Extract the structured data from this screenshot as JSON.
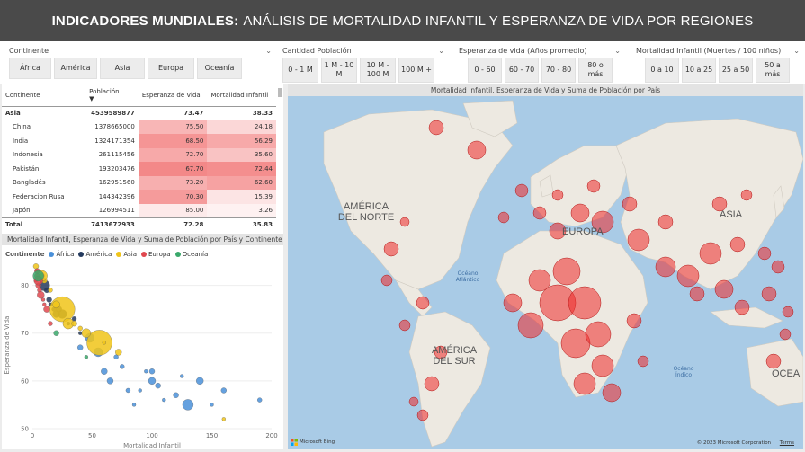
{
  "header": {
    "title_bold": "INDICADORES MUNDIALES:",
    "title_rest": "ANÁLISIS DE MORTALIDAD INFANTIL Y ESPERANZA DE VIDA POR REGIONES"
  },
  "slicers": {
    "continente": {
      "title": "Continente",
      "options": [
        "África",
        "América",
        "Asia",
        "Europa",
        "Oceanía"
      ]
    },
    "poblacion": {
      "title": "Cantidad Población",
      "options": [
        "0 - 1 M",
        "1 M - 10 M",
        "10 M - 100 M",
        "100 M +"
      ]
    },
    "esperanza": {
      "title": "Esperanza de vida (Años promedio)",
      "options": [
        "0 - 60",
        "60 - 70",
        "70 - 80",
        "80 o más"
      ]
    },
    "mortalidad": {
      "title": "Mortalidad Infantil (Muertes / 100 niños)",
      "options": [
        "0 a 10",
        "10 a 25",
        "25 a 50",
        "50 a más"
      ]
    }
  },
  "table": {
    "headers": [
      "Continente",
      "Población",
      "Esperanza de Vida",
      "Mortalidad Infantil"
    ],
    "subtotal": [
      "Asia",
      "4539589877",
      "73.47",
      "38.33"
    ],
    "rows": [
      [
        "China",
        "1378665000",
        "75.50",
        "24.18"
      ],
      [
        "India",
        "1324171354",
        "68.50",
        "56.29"
      ],
      [
        "Indonesia",
        "261115456",
        "72.70",
        "35.60"
      ],
      [
        "Pakistán",
        "193203476",
        "67.70",
        "72.44"
      ],
      [
        "Bangladés",
        "162951560",
        "73.20",
        "62.60"
      ],
      [
        "Federacion Rusa",
        "144342396",
        "70.30",
        "15.39"
      ],
      [
        "Japón",
        "126994511",
        "85.00",
        "3.26"
      ]
    ],
    "total": [
      "Total",
      "7413672933",
      "72.28",
      "35.83"
    ],
    "life_shade": [
      0.45,
      0.7,
      0.55,
      0.8,
      0.5,
      0.65,
      0.05
    ],
    "mort_shade": [
      0.2,
      0.55,
      0.35,
      0.75,
      0.6,
      0.1,
      0.0
    ]
  },
  "scatter": {
    "title": "Mortalidad Infantil, Esperanza de Vida y Suma de Población por País y Continente",
    "legend_title": "Continente",
    "xlabel": "Mortalidad Infantil",
    "ylabel": "Esperanza de Vida"
  },
  "map": {
    "title": "Mortalidad Infantil, Esperanza de Vida y Suma de Población por País",
    "labels": [
      "AMÉRICA DEL NORTE",
      "EUROPA",
      "ASIA",
      "AMÉRICA DEL SUR",
      "OCEA"
    ],
    "oceans": [
      "Océano Atlántico",
      "Océano Índico"
    ],
    "bing": "Microsoft Bing",
    "copyright": "© 2023 Microsoft Corporation",
    "terms": "Terms"
  },
  "chart_data": {
    "type": "scatter",
    "title": "Mortalidad Infantil, Esperanza de Vida y Suma de Población por País y Continente",
    "xlabel": "Mortalidad Infantil",
    "ylabel": "Esperanza de Vida",
    "xlim": [
      0,
      200
    ],
    "ylim": [
      50,
      85
    ],
    "x_ticks": [
      0,
      50,
      100,
      150,
      200
    ],
    "y_ticks": [
      50,
      60,
      70,
      80
    ],
    "colors": {
      "África": "#4a90d9",
      "América": "#243a5e",
      "Asia": "#f0c419",
      "Europa": "#e0484f",
      "Oceanía": "#3aa86b"
    },
    "series": [
      {
        "name": "África",
        "points": [
          [
            150,
            55
          ],
          [
            120,
            57
          ],
          [
            80,
            58
          ],
          [
            100,
            60
          ],
          [
            95,
            62
          ],
          [
            60,
            62
          ],
          [
            70,
            65
          ],
          [
            55,
            66
          ],
          [
            40,
            67
          ],
          [
            110,
            56
          ],
          [
            130,
            55
          ],
          [
            100,
            62
          ],
          [
            90,
            58
          ],
          [
            160,
            58
          ],
          [
            190,
            56
          ],
          [
            140,
            60
          ],
          [
            85,
            55
          ],
          [
            65,
            60
          ],
          [
            75,
            63
          ],
          [
            48,
            69
          ],
          [
            105,
            59
          ],
          [
            125,
            61
          ]
        ]
      },
      {
        "name": "América",
        "points": [
          [
            10,
            80
          ],
          [
            8,
            82
          ],
          [
            15,
            76
          ],
          [
            14,
            77
          ],
          [
            18,
            75
          ],
          [
            20,
            74
          ],
          [
            30,
            72
          ],
          [
            22,
            75
          ],
          [
            35,
            73
          ],
          [
            25,
            74
          ],
          [
            12,
            79
          ],
          [
            40,
            70
          ]
        ]
      },
      {
        "name": "Asia",
        "points": [
          [
            25,
            75
          ],
          [
            56,
            68
          ],
          [
            30,
            72
          ],
          [
            3,
            84
          ],
          [
            4,
            83
          ],
          [
            10,
            81
          ],
          [
            15,
            79
          ],
          [
            20,
            76
          ],
          [
            60,
            68
          ],
          [
            72,
            66
          ],
          [
            40,
            71
          ],
          [
            45,
            70
          ],
          [
            35,
            72
          ],
          [
            160,
            52
          ],
          [
            8,
            82
          ]
        ]
      },
      {
        "name": "Europa",
        "points": [
          [
            4,
            82
          ],
          [
            3,
            81
          ],
          [
            5,
            80
          ],
          [
            6,
            79
          ],
          [
            7,
            78
          ],
          [
            9,
            77
          ],
          [
            12,
            75
          ],
          [
            15,
            72
          ],
          [
            5,
            81
          ],
          [
            4,
            83
          ],
          [
            10,
            76
          ]
        ]
      },
      {
        "name": "Oceanía",
        "points": [
          [
            5,
            82
          ],
          [
            20,
            70
          ],
          [
            45,
            65
          ]
        ]
      }
    ]
  }
}
